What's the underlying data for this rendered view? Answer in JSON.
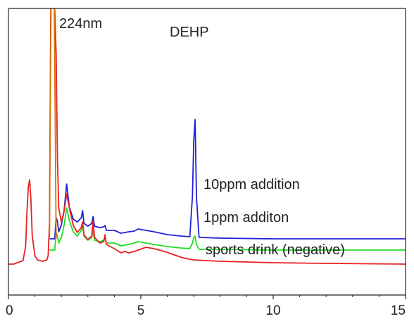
{
  "chart_data": {
    "type": "line",
    "title": "",
    "xlabel": "",
    "ylabel": "",
    "xlim": [
      0,
      15
    ],
    "x_ticks": [
      "0",
      "5",
      "10",
      "15"
    ],
    "grid": false,
    "annotations": {
      "wavelength": "224nm",
      "peak": "DEHP"
    },
    "series": [
      {
        "name": "10ppm addition",
        "color": "#2020d8",
        "baseline_offset": 36,
        "points": [
          [
            1.55,
            0
          ],
          [
            1.75,
            0
          ],
          [
            1.8,
            30
          ],
          [
            1.85,
            25
          ],
          [
            1.9,
            10
          ],
          [
            2.0,
            20
          ],
          [
            2.1,
            40
          ],
          [
            2.2,
            78
          ],
          [
            2.3,
            45
          ],
          [
            2.45,
            28
          ],
          [
            2.6,
            24
          ],
          [
            2.75,
            30
          ],
          [
            2.8,
            40
          ],
          [
            2.85,
            22
          ],
          [
            3.0,
            18
          ],
          [
            3.15,
            22
          ],
          [
            3.2,
            32
          ],
          [
            3.25,
            18
          ],
          [
            3.45,
            16
          ],
          [
            3.6,
            17
          ],
          [
            3.65,
            19
          ],
          [
            3.7,
            12
          ],
          [
            4.0,
            12
          ],
          [
            4.25,
            8
          ],
          [
            4.4,
            9
          ],
          [
            4.55,
            10
          ],
          [
            4.75,
            11
          ],
          [
            4.9,
            14
          ],
          [
            5.2,
            12
          ],
          [
            5.5,
            10
          ],
          [
            6.0,
            6
          ],
          [
            6.5,
            4
          ],
          [
            6.85,
            3
          ],
          [
            6.95,
            60
          ],
          [
            7.0,
            140
          ],
          [
            7.05,
            170
          ],
          [
            7.1,
            60
          ],
          [
            7.2,
            2
          ],
          [
            8,
            1
          ],
          [
            10,
            0
          ],
          [
            12,
            0
          ],
          [
            15,
            0
          ]
        ]
      },
      {
        "name": "1ppm additon",
        "color": "#22dd22",
        "baseline_offset": 20,
        "points": [
          [
            1.55,
            0
          ],
          [
            1.75,
            0
          ],
          [
            1.8,
            25
          ],
          [
            1.85,
            20
          ],
          [
            1.9,
            10
          ],
          [
            2.0,
            18
          ],
          [
            2.1,
            35
          ],
          [
            2.2,
            60
          ],
          [
            2.3,
            42
          ],
          [
            2.45,
            26
          ],
          [
            2.6,
            20
          ],
          [
            2.75,
            28
          ],
          [
            2.8,
            36
          ],
          [
            2.85,
            20
          ],
          [
            3.0,
            14
          ],
          [
            3.15,
            18
          ],
          [
            3.2,
            28
          ],
          [
            3.25,
            14
          ],
          [
            3.45,
            12
          ],
          [
            3.6,
            14
          ],
          [
            3.65,
            16
          ],
          [
            3.7,
            10
          ],
          [
            4.0,
            10
          ],
          [
            4.25,
            6
          ],
          [
            4.4,
            7
          ],
          [
            4.55,
            8
          ],
          [
            4.75,
            10
          ],
          [
            4.9,
            12
          ],
          [
            5.2,
            10
          ],
          [
            5.5,
            8
          ],
          [
            6.0,
            5
          ],
          [
            6.5,
            3
          ],
          [
            6.85,
            2
          ],
          [
            6.95,
            10
          ],
          [
            7.0,
            18
          ],
          [
            7.05,
            20
          ],
          [
            7.1,
            8
          ],
          [
            7.2,
            1
          ],
          [
            8,
            1
          ],
          [
            10,
            0
          ],
          [
            12,
            0
          ],
          [
            15,
            0
          ]
        ]
      },
      {
        "name": "sports drink (negative)",
        "color": "#e82020",
        "baseline_offset": 0,
        "points": [
          [
            0,
            0
          ],
          [
            0.2,
            0
          ],
          [
            0.55,
            5
          ],
          [
            0.65,
            25
          ],
          [
            0.7,
            75
          ],
          [
            0.75,
            110
          ],
          [
            0.8,
            120
          ],
          [
            0.85,
            90
          ],
          [
            0.9,
            40
          ],
          [
            1.0,
            12
          ],
          [
            1.1,
            6
          ],
          [
            1.3,
            4
          ],
          [
            1.45,
            6
          ],
          [
            1.5,
            12
          ],
          [
            1.55,
            60
          ],
          [
            1.6,
            380
          ],
          [
            1.7,
            380
          ],
          [
            1.75,
            360
          ],
          [
            1.8,
            300
          ],
          [
            1.85,
            150
          ],
          [
            1.9,
            80
          ],
          [
            2.0,
            60
          ],
          [
            2.1,
            75
          ],
          [
            2.2,
            100
          ],
          [
            2.3,
            80
          ],
          [
            2.45,
            55
          ],
          [
            2.6,
            45
          ],
          [
            2.75,
            52
          ],
          [
            2.8,
            60
          ],
          [
            2.85,
            42
          ],
          [
            3.0,
            35
          ],
          [
            3.15,
            40
          ],
          [
            3.2,
            62
          ],
          [
            3.25,
            38
          ],
          [
            3.45,
            30
          ],
          [
            3.6,
            32
          ],
          [
            3.65,
            42
          ],
          [
            3.7,
            28
          ],
          [
            4.0,
            22
          ],
          [
            4.25,
            16
          ],
          [
            4.4,
            18
          ],
          [
            4.55,
            16
          ],
          [
            4.75,
            18
          ],
          [
            4.9,
            20
          ],
          [
            5.2,
            24
          ],
          [
            5.5,
            22
          ],
          [
            5.9,
            18
          ],
          [
            6.2,
            14
          ],
          [
            6.5,
            10
          ],
          [
            6.7,
            8
          ],
          [
            7.0,
            6
          ],
          [
            7.5,
            5
          ],
          [
            8,
            4
          ],
          [
            9,
            3
          ],
          [
            10,
            2
          ],
          [
            12,
            1
          ],
          [
            15,
            0
          ]
        ]
      },
      {
        "name": "",
        "color": "#d87000",
        "baseline_offset": 36,
        "points": [
          [
            1.55,
            0
          ],
          [
            1.58,
            200
          ],
          [
            1.62,
            380
          ],
          [
            1.68,
            380
          ],
          [
            1.72,
            380
          ],
          [
            1.76,
            200
          ],
          [
            1.8,
            0
          ]
        ]
      }
    ]
  }
}
